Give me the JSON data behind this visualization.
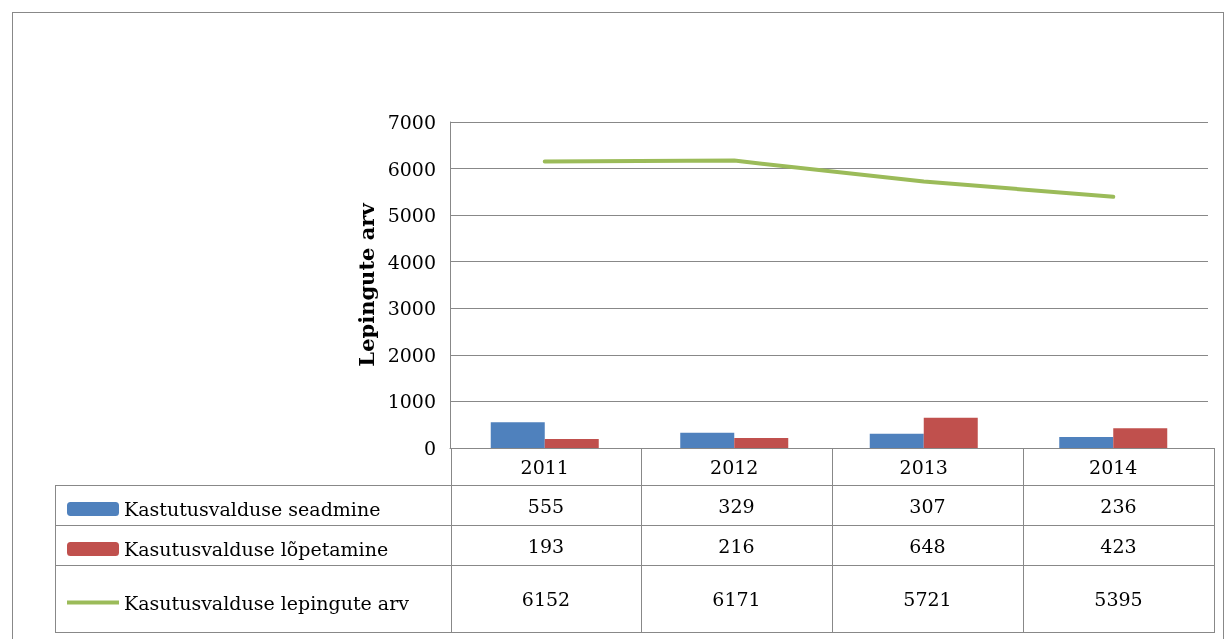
{
  "chart_data": {
    "type": "bar",
    "ylabel": "Lepingute arv",
    "categories": [
      "2011",
      "2012",
      "2013",
      "2014"
    ],
    "series": [
      {
        "name": "Kastutusvalduse seadmine",
        "color": "#4f81bd",
        "values": [
          555,
          329,
          307,
          236
        ]
      },
      {
        "name": "Kasutusvalduse lõpetamine",
        "color": "#c0504d",
        "values": [
          193,
          216,
          648,
          423
        ]
      },
      {
        "name": "Kasutusvalduse lepingute arv",
        "type": "line",
        "color": "#9bbb59",
        "values": [
          6152,
          6171,
          5721,
          5395
        ]
      }
    ],
    "ylim": [
      0,
      7000
    ],
    "yticks": [
      0,
      1000,
      2000,
      3000,
      4000,
      5000,
      6000,
      7000
    ],
    "grid": "y",
    "legend": "bottom left",
    "marker": "none",
    "line_style": "solid",
    "data_labels": true
  }
}
